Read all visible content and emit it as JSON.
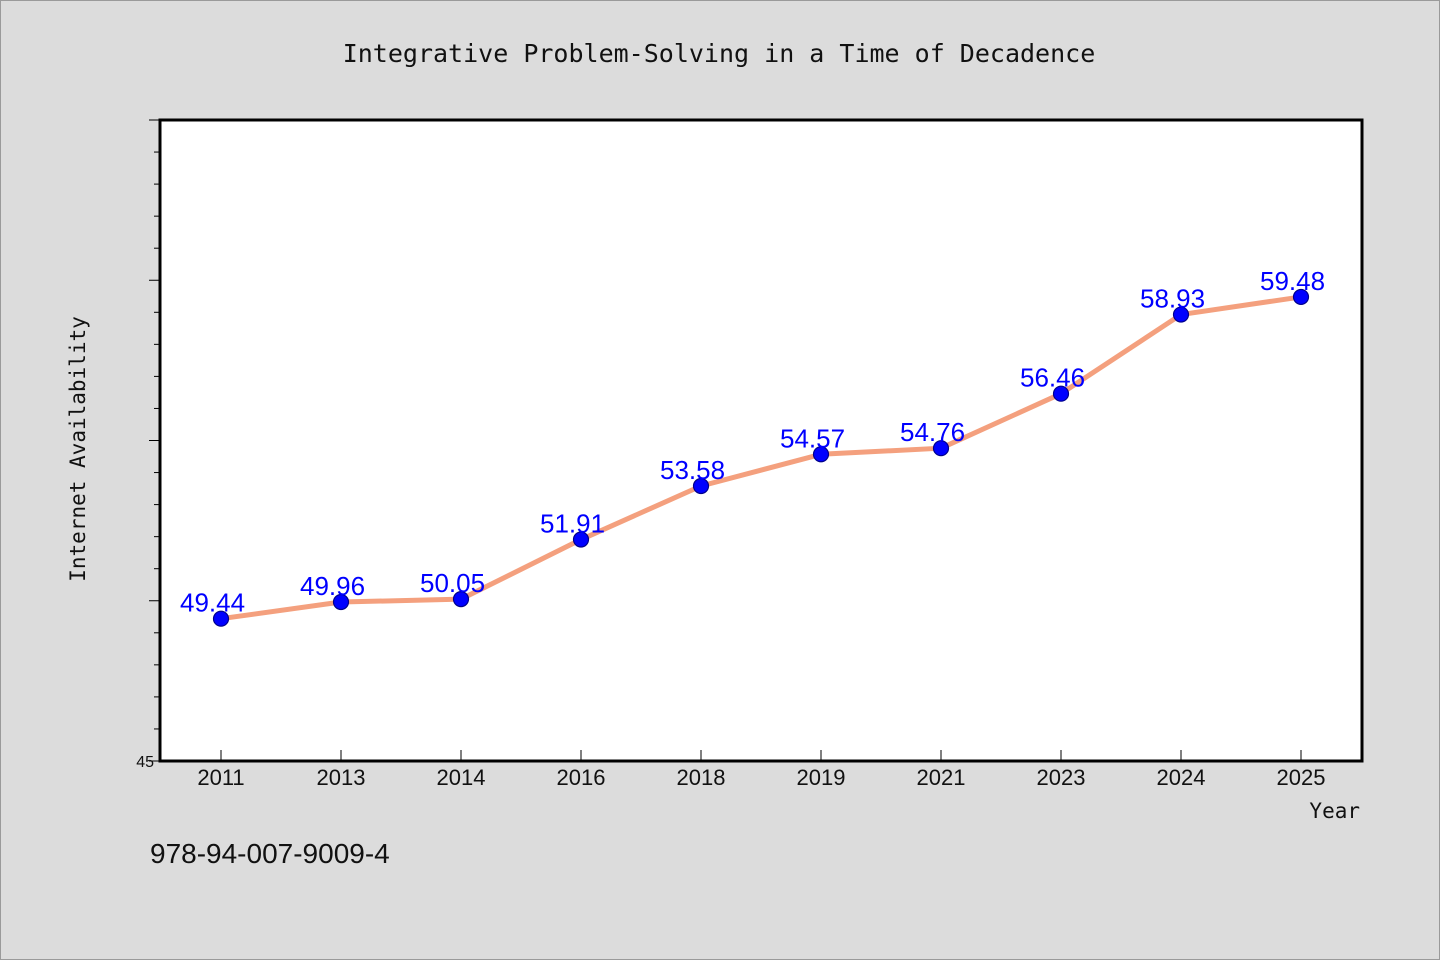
{
  "chart_data": {
    "type": "line",
    "title": "Integrative Problem-Solving in a Time of Decadence",
    "xlabel": "Year",
    "ylabel": "Internet Availability",
    "categories": [
      "2011",
      "2013",
      "2014",
      "2016",
      "2018",
      "2019",
      "2021",
      "2023",
      "2024",
      "2025"
    ],
    "values": [
      49.44,
      49.96,
      50.05,
      51.91,
      53.58,
      54.57,
      54.76,
      56.46,
      58.93,
      59.48
    ],
    "value_labels": [
      "49.44",
      "49.96",
      "50.05",
      "51.91",
      "53.58",
      "54.57",
      "54.76",
      "56.46",
      "58.93",
      "59.48"
    ],
    "ylim": [
      45,
      65
    ],
    "y_tick_labels_shown": [
      "45"
    ],
    "grid": false,
    "line_color": "#f4a07e",
    "marker_color": "#0000ff",
    "label_color": "#0000ff"
  },
  "footer": {
    "isbn": "978-94-007-9009-4"
  }
}
